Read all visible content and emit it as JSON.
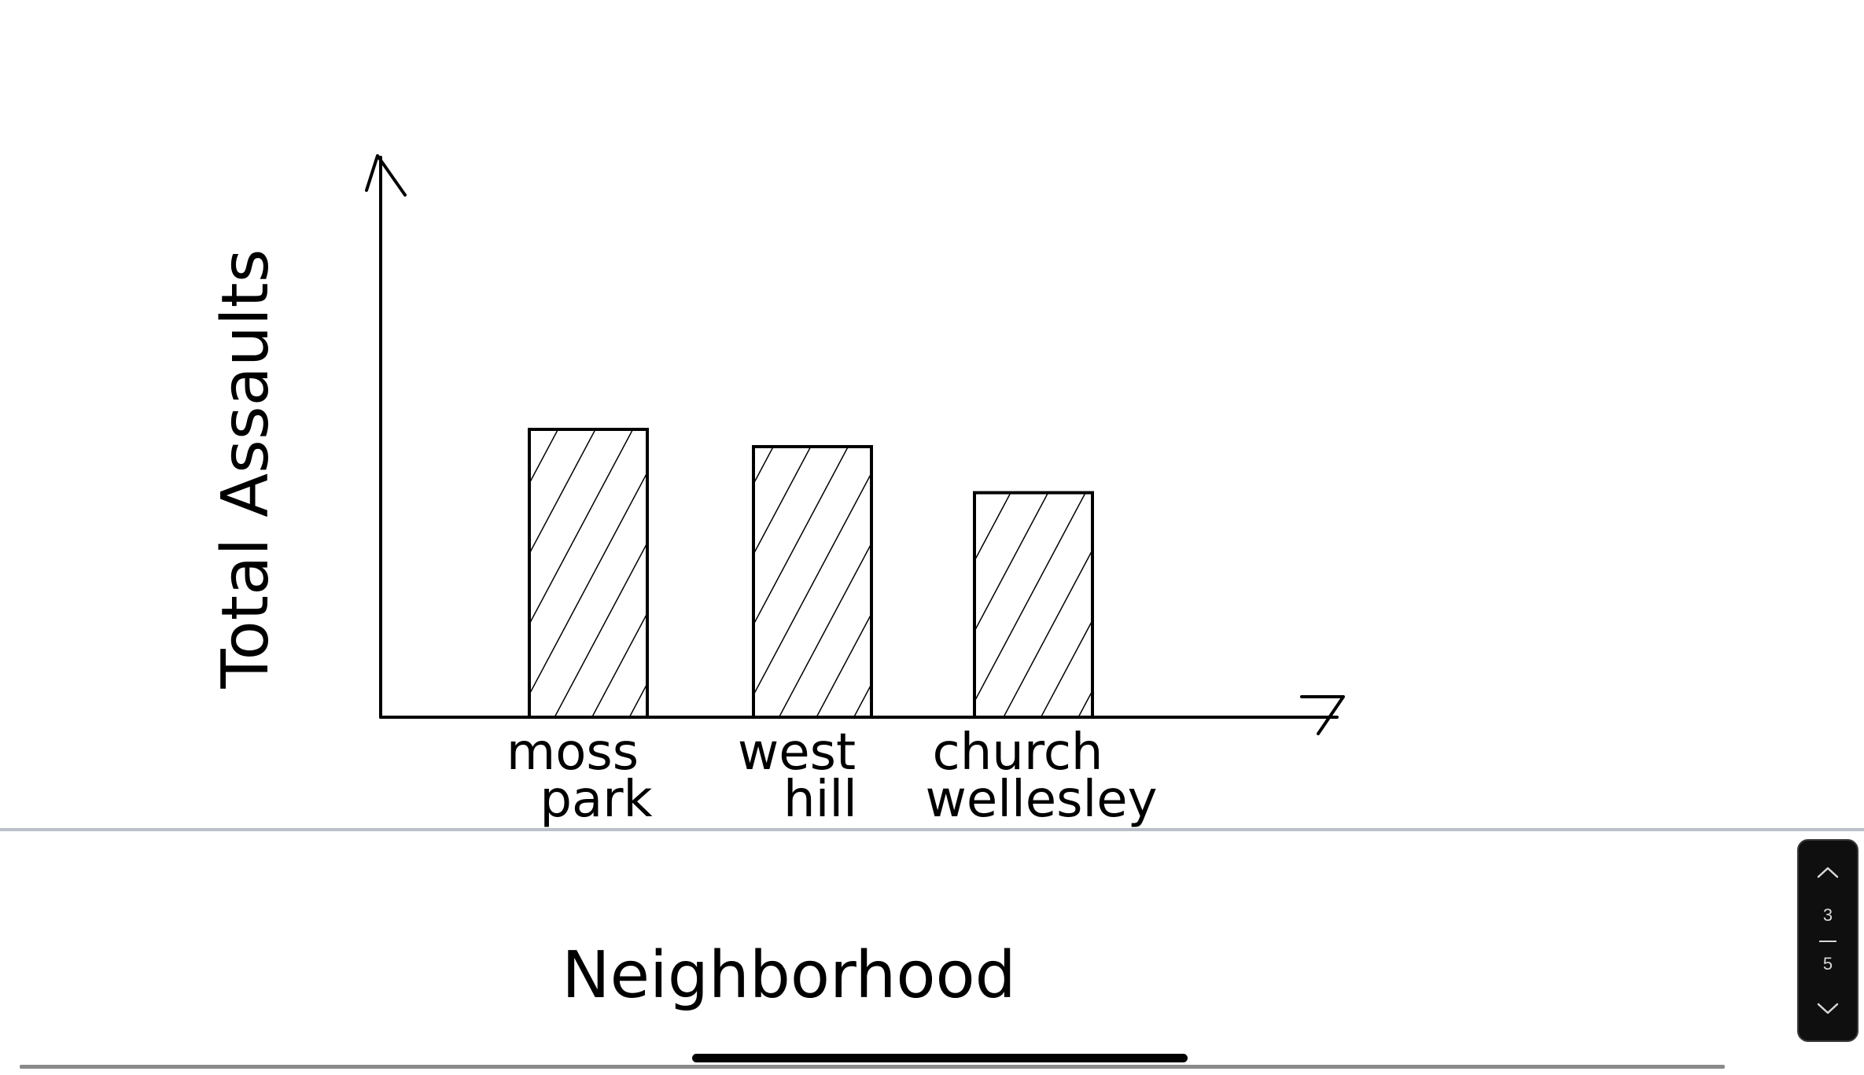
{
  "chart_data": {
    "type": "bar",
    "title": "",
    "xlabel": "Neighborhood",
    "ylabel": "Total Assaults",
    "categories": [
      "moss park",
      "west hill",
      "church wellesley"
    ],
    "category_lines": [
      [
        "moss",
        "park"
      ],
      [
        "west",
        "hill"
      ],
      [
        "church",
        "wellesley"
      ]
    ],
    "values": [
      100,
      94,
      78
    ],
    "ylim": [
      0,
      200
    ],
    "bar_fill": "diagonal-hatch",
    "grid": false,
    "legend": "none"
  },
  "pager": {
    "current": "3",
    "total": "5",
    "up_icon": "chevron-up-icon",
    "down_icon": "chevron-down-icon"
  },
  "colors": {
    "ink": "#000000",
    "divider": "#b9c0c9",
    "pager_bg": "#0f0f10"
  }
}
